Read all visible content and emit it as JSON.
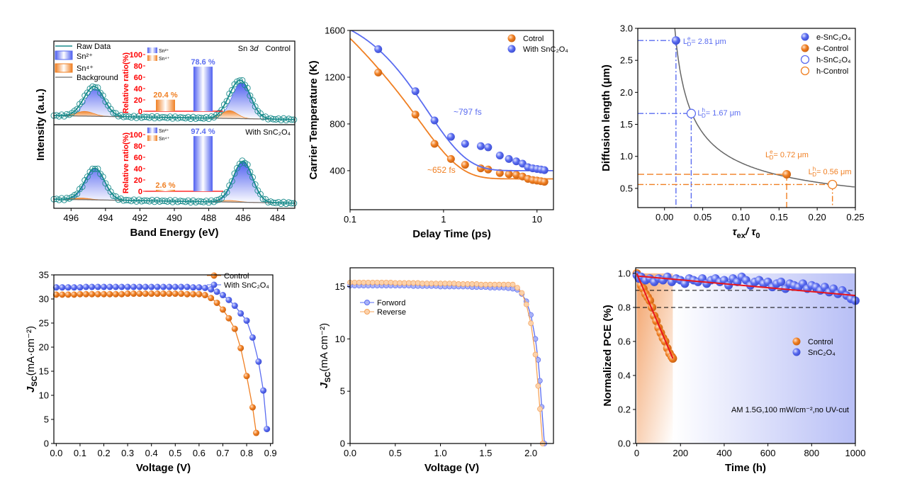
{
  "colors": {
    "blue": "#5a6cf0",
    "orange": "#f07f22",
    "teal": "#1a8c8c",
    "fit_red": "#e8151b",
    "gray": "#6e6e6e",
    "inset_red": "#ff0000"
  },
  "chart_data": [
    {
      "type": "line",
      "xlabel": "Band Energy (eV)",
      "ylabel": "Intensity (a.u.)",
      "xlim": [
        497,
        483
      ],
      "xticks": [
        496,
        494,
        492,
        490,
        488,
        486,
        484
      ],
      "xtick_labels": [
        "496",
        "494",
        "492",
        "490",
        "488",
        "486",
        "484"
      ],
      "legend": [
        "Raw Data",
        "Sn²⁺",
        "Sn⁴⁺",
        "Background"
      ],
      "subplots": [
        {
          "title_prefix": "Sn 3",
          "title_orbital": "d",
          "title": "Control",
          "sn2": [
            {
              "center": 494.6,
              "amp": 0.35,
              "width": 0.55
            },
            {
              "center": 486.1,
              "amp": 0.46,
              "width": 0.55
            }
          ],
          "sn4": [
            {
              "center": 495.2,
              "amp": 0.06,
              "width": 0.5
            },
            {
              "center": 486.8,
              "amp": 0.1,
              "width": 0.45
            }
          ],
          "inset": {
            "ylabel": "Relative ratio(%)",
            "yticks": [
              0,
              20,
              40,
              60,
              80,
              100
            ],
            "ytick_labels": [
              "0",
              "20",
              "40",
              "60",
              "80",
              "100"
            ],
            "legend": [
              "Sn²⁺",
              "Sn⁴⁺"
            ],
            "bars": [
              {
                "name": "Sn⁴⁺",
                "value": 20.4,
                "label": "20.4 %"
              },
              {
                "name": "Sn²⁺",
                "value": 78.6,
                "label": "78.6 %"
              }
            ]
          }
        },
        {
          "title_prefix": "",
          "title_orbital": "",
          "title": "With SnC₂O₄",
          "sn2": [
            {
              "center": 494.6,
              "amp": 0.4,
              "width": 0.55
            },
            {
              "center": 486.0,
              "amp": 0.52,
              "width": 0.55
            }
          ],
          "sn4": [
            {
              "center": 495.4,
              "amp": 0.02,
              "width": 0.5
            },
            {
              "center": 486.8,
              "amp": 0.02,
              "width": 0.5
            }
          ],
          "inset": {
            "ylabel": "Relative ratio(%)",
            "yticks": [
              0,
              20,
              40,
              60,
              80,
              100
            ],
            "ytick_labels": [
              "0",
              "20",
              "40",
              "60",
              "80",
              "100"
            ],
            "legend": [
              "Sn²⁺",
              "Sn⁴⁺"
            ],
            "bars": [
              {
                "name": "Sn⁴⁺",
                "value": 2.6,
                "label": "2.6 %"
              },
              {
                "name": "Sn²⁺",
                "value": 97.4,
                "label": "97.4 %"
              }
            ]
          }
        }
      ]
    },
    {
      "type": "scatter",
      "xlabel": "Delay Time (ps)",
      "ylabel": "Carrier Temperature (K)",
      "xscale": "log",
      "xlim": [
        0.1,
        15
      ],
      "ylim": [
        66,
        1600
      ],
      "xticks": [
        0.1,
        1,
        10
      ],
      "xtick_labels": [
        "0.1",
        "1",
        "10"
      ],
      "yticks": [
        400,
        800,
        1200,
        1600
      ],
      "ytick_labels": [
        "400",
        "800",
        "1200",
        "1600"
      ],
      "legend_position": "top-right",
      "series": [
        {
          "name": "Cotrol",
          "color": "#f07f22",
          "fit_label": "~652 fs",
          "x": [
            0.2,
            0.5,
            0.8,
            1.2,
            1.7,
            2.5,
            3,
            4,
            5,
            6,
            7,
            8,
            9,
            10,
            11,
            12
          ],
          "y": [
            1240,
            880,
            630,
            500,
            450,
            420,
            410,
            380,
            370,
            365,
            350,
            330,
            320,
            315,
            310,
            305
          ]
        },
        {
          "name": "With SnC₂O₄",
          "color": "#5a6cf0",
          "fit_label": "~797 fs",
          "x": [
            0.2,
            0.5,
            0.8,
            1.2,
            1.7,
            2.5,
            3,
            4,
            5,
            6,
            7,
            8,
            9,
            10,
            11,
            12
          ],
          "y": [
            1440,
            1080,
            830,
            690,
            630,
            610,
            600,
            530,
            500,
            480,
            460,
            430,
            420,
            415,
            410,
            405
          ]
        }
      ]
    },
    {
      "type": "scatter",
      "xlabel_parts": [
        "τ",
        "ex",
        "/ τ",
        "0"
      ],
      "ylabel": "Diffusion length (μm)",
      "xlim": [
        -0.035,
        0.25
      ],
      "ylim": [
        0.2,
        3.0
      ],
      "xticks": [
        0,
        0.05,
        0.1,
        0.15,
        0.2,
        0.25
      ],
      "xtick_labels": [
        "0.00",
        "0.05",
        "0.10",
        "0.15",
        "0.20",
        "0.25"
      ],
      "yticks": [
        0.5,
        1.0,
        1.5,
        2.0,
        2.5,
        3.0
      ],
      "ytick_labels": [
        "0.5",
        "1.0",
        "1.5",
        "2.0",
        "2.5",
        "3.0"
      ],
      "legend_position": "top-right",
      "points": [
        {
          "name": "e-SnC₂O₄",
          "x": 0.015,
          "y": 2.81,
          "filled": true,
          "color": "#5a6cf0",
          "label": {
            "sym": "L",
            "sup": "e",
            "sub": "D",
            "text": "= 2.81 μm"
          }
        },
        {
          "name": "e-Control",
          "x": 0.16,
          "y": 0.72,
          "filled": true,
          "color": "#f07f22",
          "label": {
            "sym": "L",
            "sup": "e",
            "sub": "D",
            "text": "= 0.72 μm"
          }
        },
        {
          "name": "h-SnC₂O₄",
          "x": 0.035,
          "y": 1.67,
          "filled": false,
          "color": "#5a6cf0",
          "label": {
            "sym": "L",
            "sup": "h",
            "sub": "D",
            "text": "= 1.67 μm"
          }
        },
        {
          "name": "h-Control",
          "x": 0.22,
          "y": 0.56,
          "filled": false,
          "color": "#f07f22",
          "label": {
            "sym": "L",
            "sup": "h",
            "sub": "D",
            "text": "= 0.56 μm"
          }
        }
      ]
    },
    {
      "type": "line",
      "xlabel": "Voltage (V)",
      "ylabel_parts": [
        "J",
        "SC",
        "(mA·cm⁻²)"
      ],
      "xlim": [
        -0.01,
        0.91
      ],
      "ylim": [
        0,
        35
      ],
      "xticks": [
        0,
        0.1,
        0.2,
        0.3,
        0.4,
        0.5,
        0.6,
        0.7,
        0.8,
        0.9
      ],
      "xtick_labels": [
        "0.0",
        "0.1",
        "0.2",
        "0.3",
        "0.4",
        "0.5",
        "0.6",
        "0.7",
        "0.8",
        "0.9"
      ],
      "yticks": [
        0,
        5,
        10,
        15,
        20,
        25,
        30,
        35
      ],
      "ytick_labels": [
        "0",
        "5",
        "10",
        "15",
        "20",
        "25",
        "30",
        "35"
      ],
      "legend_position": "top-right",
      "series": [
        {
          "name": "Control",
          "color": "#f07f22",
          "x": [
            0,
            0.025,
            0.05,
            0.075,
            0.1,
            0.125,
            0.15,
            0.175,
            0.2,
            0.225,
            0.25,
            0.275,
            0.3,
            0.325,
            0.35,
            0.375,
            0.4,
            0.425,
            0.45,
            0.475,
            0.5,
            0.525,
            0.55,
            0.575,
            0.6,
            0.625,
            0.65,
            0.675,
            0.7,
            0.725,
            0.75,
            0.775,
            0.8,
            0.825,
            0.84
          ],
          "y": [
            30.9,
            30.9,
            30.9,
            30.9,
            31,
            31,
            31,
            31,
            31,
            31,
            31,
            31,
            31.1,
            31.1,
            31.1,
            31.1,
            31.1,
            31.1,
            31.1,
            31.1,
            31.1,
            31.1,
            31,
            31,
            31,
            30.8,
            30.2,
            29.2,
            27.8,
            26,
            23.8,
            19.8,
            14,
            7.5,
            2.2
          ]
        },
        {
          "name": "With SnC₂O₄",
          "color": "#5a6cf0",
          "x": [
            0,
            0.025,
            0.05,
            0.075,
            0.1,
            0.125,
            0.15,
            0.175,
            0.2,
            0.225,
            0.25,
            0.275,
            0.3,
            0.325,
            0.35,
            0.375,
            0.4,
            0.425,
            0.45,
            0.475,
            0.5,
            0.525,
            0.55,
            0.575,
            0.6,
            0.625,
            0.65,
            0.675,
            0.7,
            0.725,
            0.75,
            0.775,
            0.8,
            0.825,
            0.85,
            0.87,
            0.885
          ],
          "y": [
            32.4,
            32.4,
            32.4,
            32.4,
            32.4,
            32.5,
            32.5,
            32.5,
            32.5,
            32.5,
            32.5,
            32.5,
            32.5,
            32.5,
            32.5,
            32.5,
            32.5,
            32.5,
            32.5,
            32.5,
            32.5,
            32.5,
            32.5,
            32.4,
            32.4,
            32.3,
            32,
            31.5,
            30.8,
            29.8,
            28.6,
            27,
            25.5,
            22,
            17,
            11,
            3
          ]
        }
      ]
    },
    {
      "type": "line",
      "xlabel": "Voltage (V)",
      "ylabel_parts": [
        "J",
        "SC",
        "(mA cm⁻²)"
      ],
      "xlim": [
        0,
        2.25
      ],
      "ylim": [
        0,
        16.8
      ],
      "xticks": [
        0,
        0.5,
        1,
        1.5,
        2
      ],
      "xtick_labels": [
        "0.0",
        "0.5",
        "1.0",
        "1.5",
        "2.0"
      ],
      "yticks": [
        0,
        5,
        10,
        15
      ],
      "ytick_labels": [
        "0",
        "5",
        "10",
        "15"
      ],
      "legend_position": "left",
      "series": [
        {
          "name": "Forword",
          "color": "#5a6cf0",
          "x": [
            0,
            0.05,
            0.1,
            0.15,
            0.2,
            0.25,
            0.3,
            0.35,
            0.4,
            0.45,
            0.5,
            0.55,
            0.6,
            0.65,
            0.7,
            0.75,
            0.8,
            0.85,
            0.9,
            0.95,
            1,
            1.05,
            1.1,
            1.15,
            1.2,
            1.25,
            1.3,
            1.35,
            1.4,
            1.45,
            1.5,
            1.55,
            1.6,
            1.65,
            1.7,
            1.75,
            1.8,
            1.85,
            1.9,
            1.95,
            2,
            2.05,
            2.08,
            2.1,
            2.12,
            2.15
          ],
          "y": [
            15.1,
            15.1,
            15.1,
            15.1,
            15.1,
            15.1,
            15.1,
            15.1,
            15.1,
            15.1,
            15.1,
            15.1,
            15.1,
            15.1,
            15.05,
            15.05,
            15.05,
            15.05,
            15.05,
            15.05,
            15.0,
            15.0,
            15.0,
            15.0,
            15.0,
            15.0,
            15.0,
            14.95,
            14.95,
            14.95,
            14.95,
            14.9,
            14.9,
            14.9,
            14.9,
            14.85,
            14.8,
            14.7,
            14.3,
            13.6,
            12.3,
            10,
            8,
            6,
            3.5,
            0
          ]
        },
        {
          "name": "Reverse",
          "color": "#f5a35a",
          "x": [
            0,
            0.05,
            0.1,
            0.15,
            0.2,
            0.25,
            0.3,
            0.35,
            0.4,
            0.45,
            0.5,
            0.55,
            0.6,
            0.65,
            0.7,
            0.75,
            0.8,
            0.85,
            0.9,
            0.95,
            1,
            1.05,
            1.1,
            1.15,
            1.2,
            1.25,
            1.3,
            1.35,
            1.4,
            1.45,
            1.5,
            1.55,
            1.6,
            1.65,
            1.7,
            1.75,
            1.8,
            1.85,
            1.9,
            1.95,
            2,
            2.05,
            2.08,
            2.1,
            2.13
          ],
          "y": [
            15.4,
            15.4,
            15.4,
            15.4,
            15.4,
            15.4,
            15.4,
            15.4,
            15.4,
            15.4,
            15.35,
            15.35,
            15.35,
            15.35,
            15.35,
            15.35,
            15.3,
            15.3,
            15.3,
            15.3,
            15.3,
            15.3,
            15.3,
            15.3,
            15.25,
            15.25,
            15.25,
            15.25,
            15.25,
            15.2,
            15.2,
            15.2,
            15.2,
            15.2,
            15.2,
            15.2,
            15.2,
            14.9,
            14.4,
            13.3,
            11.5,
            8.5,
            5.5,
            3.3,
            0
          ]
        }
      ]
    },
    {
      "type": "scatter",
      "xlabel": "Time (h)",
      "ylabel": "Normalized PCE (%)",
      "xlim": [
        -5,
        1000
      ],
      "ylim": [
        0,
        1.033
      ],
      "xticks": [
        0,
        200,
        400,
        600,
        800,
        1000
      ],
      "xtick_labels": [
        "0",
        "200",
        "400",
        "600",
        "800",
        "1000"
      ],
      "yticks": [
        0,
        0.2,
        0.4,
        0.6,
        0.8,
        1.0
      ],
      "ytick_labels": [
        "0.0",
        "0.2",
        "0.4",
        "0.6",
        "0.8",
        "1.0"
      ],
      "reference_lines": [
        0.9,
        0.8
      ],
      "legend_position": "right",
      "annotation": "AM 1.5G,100 mW/cm⁻²,no UV-cut",
      "series": [
        {
          "name": "Control",
          "color": "#f07f22",
          "fit": [
            [
              0,
              1.0
            ],
            [
              165,
              0.5
            ]
          ],
          "x": [
            0,
            10,
            20,
            30,
            40,
            50,
            60,
            70,
            80,
            90,
            100,
            110,
            120,
            130,
            140,
            150,
            160,
            165
          ],
          "y": [
            1.0,
            0.97,
            0.93,
            0.91,
            0.88,
            0.86,
            0.84,
            0.8,
            0.75,
            0.72,
            0.68,
            0.65,
            0.62,
            0.6,
            0.56,
            0.53,
            0.51,
            0.5
          ]
        },
        {
          "name": "SnC₂O₄",
          "color": "#5a6cf0",
          "fit": [
            [
              0,
              0.985
            ],
            [
              1000,
              0.87
            ]
          ],
          "x": [
            0,
            10,
            20,
            40,
            60,
            80,
            100,
            120,
            140,
            160,
            180,
            200,
            220,
            240,
            260,
            280,
            300,
            320,
            340,
            360,
            380,
            400,
            420,
            440,
            460,
            480,
            500,
            520,
            540,
            560,
            580,
            600,
            620,
            640,
            660,
            680,
            700,
            720,
            740,
            760,
            780,
            800,
            820,
            840,
            860,
            880,
            900,
            920,
            940,
            960,
            980,
            1000
          ],
          "y": [
            0.99,
            0.97,
            0.98,
            0.96,
            0.97,
            0.95,
            0.97,
            0.96,
            0.98,
            0.95,
            0.97,
            0.96,
            0.94,
            0.97,
            0.96,
            0.95,
            0.97,
            0.94,
            0.96,
            0.97,
            0.95,
            0.96,
            0.93,
            0.97,
            0.95,
            0.98,
            0.96,
            0.93,
            0.95,
            0.96,
            0.94,
            0.95,
            0.92,
            0.94,
            0.95,
            0.91,
            0.94,
            0.93,
            0.92,
            0.94,
            0.91,
            0.93,
            0.92,
            0.9,
            0.92,
            0.89,
            0.91,
            0.88,
            0.9,
            0.87,
            0.85,
            0.84
          ]
        }
      ]
    }
  ]
}
